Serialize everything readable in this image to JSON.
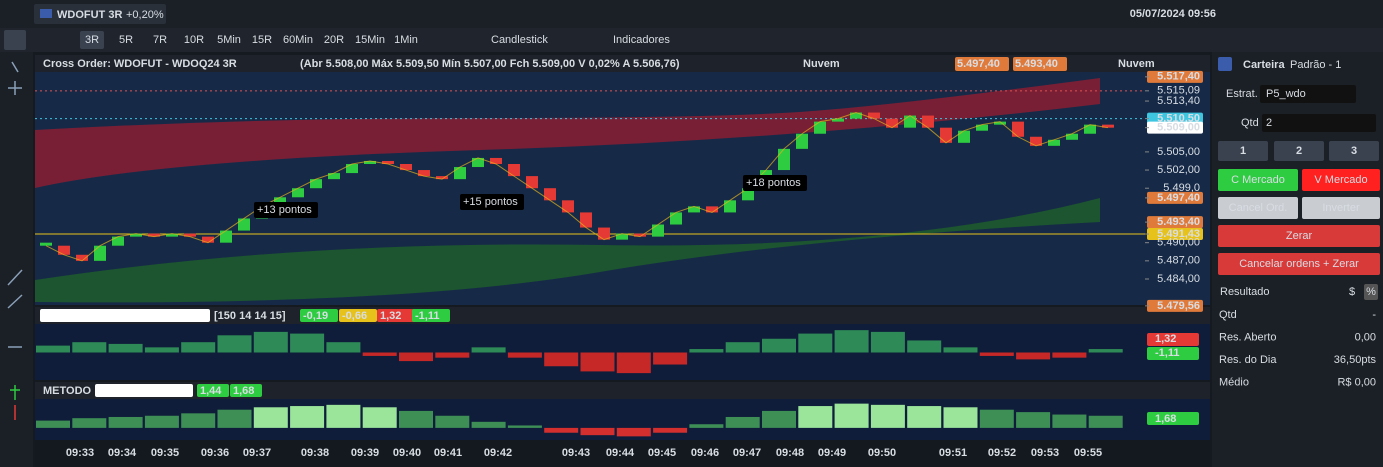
{
  "top_bar": {
    "tab": "WDOFUT 3R",
    "tab_change": "+0,20%",
    "datetime": "05/07/2024 09:56"
  },
  "toolbar": {
    "intervals": [
      "3R",
      "5R",
      "7R",
      "10R",
      "5Min",
      "15R",
      "60Min",
      "20R",
      "15Min",
      "1Min"
    ],
    "chart_type": "Candlestick",
    "indicators": "Indicadores"
  },
  "chart": {
    "title": "Cross Order: WDOFUT - WDOQ24 3R",
    "ohlc": "(Abr 5.508,00 Máx 5.509,50 Mín 5.507,00 Fch 5.509,00 V 0,02% A 5.506,76)",
    "header_items": [
      "Nuvem",
      "5.497,40",
      "5.493,40",
      "Nuvem"
    ],
    "ylim": [
      5480.2,
      5518.2
    ],
    "price_labels": [
      {
        "value": 5517.4,
        "label": "5.517,40"
      },
      {
        "value": 5515.09,
        "label": "5.515,09"
      },
      {
        "value": 5513.4,
        "label": "5.513,40"
      },
      {
        "value": 5510.5,
        "label": "5.510,50"
      },
      {
        "value": 5509,
        "label": "5.509,00"
      },
      {
        "value": 5505,
        "label": "5.505,00"
      },
      {
        "value": 5502,
        "label": "5.502,00"
      },
      {
        "value": 5499,
        "label": "5.499,0"
      },
      {
        "value": 5497.4,
        "label": "5.497,40"
      },
      {
        "value": 5493.4,
        "label": "5.493,40"
      },
      {
        "value": 5491.43,
        "label": "5.491,43"
      },
      {
        "value": 5490,
        "label": "5.490,00"
      },
      {
        "value": 5487,
        "label": "5.487,00"
      },
      {
        "value": 5484,
        "label": "5.484,00"
      },
      {
        "value": 5479.56,
        "label": "5.479,56"
      }
    ],
    "closes": [
      5489.5,
      5488,
      5487,
      5489.5,
      5491,
      5491.5,
      5491,
      5491.5,
      5491,
      5490,
      5492,
      5494,
      5496,
      5497.5,
      5499,
      5500.5,
      5501.5,
      5503,
      5503.5,
      5503,
      5502,
      5501,
      5500.5,
      5502.5,
      5504,
      5503,
      5501,
      5499,
      5497,
      5495,
      5492.5,
      5490.5,
      5491.5,
      5491,
      5493,
      5495,
      5496,
      5495,
      5497,
      5499,
      5502,
      5505.5,
      5508,
      5510,
      5510.5,
      5511.5,
      5510.5,
      5509,
      5511,
      5509,
      5506.5,
      5508.5,
      5509.5,
      5510,
      5507.5,
      5506,
      5507,
      5508,
      5509.5,
      5509
    ],
    "annotations": [
      "+13 pontos",
      "+15 pontos",
      "+18 pontos"
    ],
    "time_labels": [
      "09:33",
      "09:34",
      "09:35",
      "09:36",
      "09:37",
      "09:38",
      "09:39",
      "09:40",
      "09:41",
      "09:42",
      "09:43",
      "09:44",
      "09:45",
      "09:46",
      "09:47",
      "09:48",
      "09:49",
      "09:50",
      "09:51",
      "09:52",
      "09:53",
      "09:55"
    ]
  },
  "indicator1": {
    "params": "[150 14 14 15]",
    "values": [
      "-0,19",
      "-0,66",
      "1,32",
      "-1,11"
    ],
    "axis_labels": [
      "1,32",
      "-1,11"
    ],
    "ylim": [
      -1.6,
      1.6
    ],
    "histogram": [
      0.4,
      0.6,
      0.5,
      0.3,
      0.6,
      1.0,
      1.2,
      1.1,
      0.6,
      -0.2,
      -0.5,
      -0.3,
      0.3,
      -0.3,
      -0.8,
      -1.1,
      -1.2,
      -0.7,
      0.2,
      0.6,
      0.8,
      1.1,
      1.3,
      1.2,
      0.7,
      0.3,
      -0.2,
      -0.4,
      -0.3,
      0.2
    ]
  },
  "indicator2": {
    "name": "METODO",
    "values": [
      "1,44",
      "1,68"
    ],
    "axis_labels": [
      "1,68"
    ],
    "ylim": [
      -1,
      2.3
    ],
    "histogram": [
      0.6,
      0.8,
      0.9,
      1.0,
      1.2,
      1.5,
      1.7,
      1.8,
      1.9,
      1.7,
      1.4,
      1.0,
      0.5,
      0.2,
      -0.4,
      -0.6,
      -0.7,
      -0.4,
      0.3,
      0.9,
      1.4,
      1.8,
      2.0,
      1.9,
      1.8,
      1.7,
      1.5,
      1.3,
      1.1,
      1.0
    ]
  },
  "right_panel": {
    "account": "Carteira",
    "account_value": "Padrão - 1",
    "strategy_label": "Estrat.",
    "strategy": "P5_wdo",
    "qty_label": "Qtd",
    "qty": "2",
    "qty_buttons": [
      "1",
      "2",
      "3"
    ],
    "buy": "C Mercado",
    "sell": "V Mercado",
    "cancel": "Cancel Ord.",
    "invert": "Inverter",
    "zero": "Zerar",
    "cancel_zero": "Cancelar ordens + Zerar",
    "result_label": "Resultado",
    "result_units": [
      "$",
      "%"
    ],
    "stats": [
      [
        "Qtd",
        "-"
      ],
      [
        "Res. Aberto",
        "0,00"
      ],
      [
        "Res. do Dia",
        "36,50pts"
      ],
      [
        "Médio",
        "R$ 0,00"
      ]
    ]
  }
}
